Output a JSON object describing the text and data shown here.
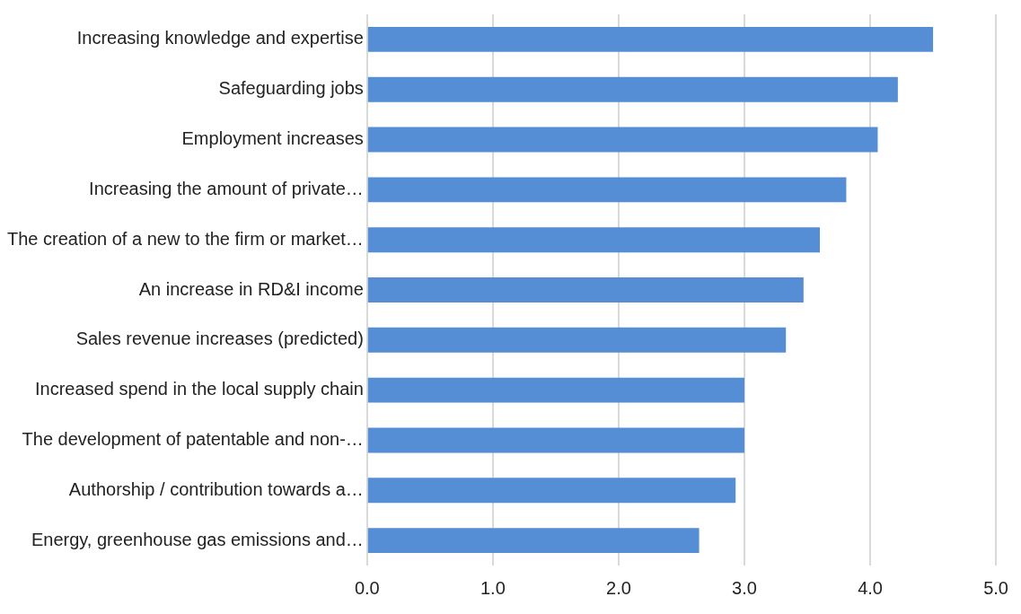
{
  "chart_data": {
    "type": "bar",
    "orientation": "horizontal",
    "categories": [
      "Increasing knowledge and expertise",
      "Safeguarding jobs",
      "Employment increases",
      "Increasing the amount of private…",
      "The creation of a new to the firm or market…",
      "An increase in RD&I income",
      "Sales revenue increases (predicted)",
      "Increased spend in the local supply chain",
      "The development of patentable and non-…",
      "Authorship / contribution towards a…",
      "Energy, greenhouse gas emissions and…"
    ],
    "values": [
      4.5,
      4.22,
      4.06,
      3.81,
      3.6,
      3.47,
      3.33,
      3.0,
      3.0,
      2.93,
      2.64
    ],
    "color": "#558ed5",
    "xlim": [
      0,
      5
    ],
    "xticks": [
      {
        "value": 0,
        "label": "0.0"
      },
      {
        "value": 1,
        "label": "1.0"
      },
      {
        "value": 2,
        "label": "2.0"
      },
      {
        "value": 3,
        "label": "3.0"
      },
      {
        "value": 4,
        "label": "4.0"
      },
      {
        "value": 5,
        "label": "5.0"
      }
    ],
    "grid": "x",
    "legend": false
  }
}
